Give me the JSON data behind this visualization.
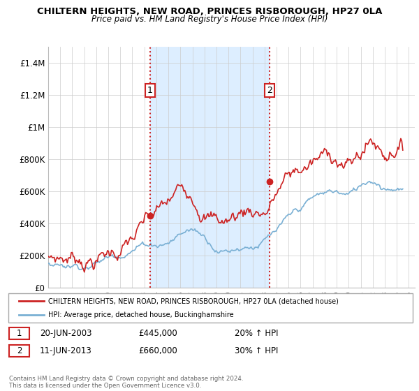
{
  "title": "CHILTERN HEIGHTS, NEW ROAD, PRINCES RISBOROUGH, HP27 0LA",
  "subtitle": "Price paid vs. HM Land Registry's House Price Index (HPI)",
  "legend_line1": "CHILTERN HEIGHTS, NEW ROAD, PRINCES RISBOROUGH, HP27 0LA (detached house)",
  "legend_line2": "HPI: Average price, detached house, Buckinghamshire",
  "annotation1_label": "1",
  "annotation1_date": "20-JUN-2003",
  "annotation1_price": "£445,000",
  "annotation1_hpi": "20% ↑ HPI",
  "annotation2_label": "2",
  "annotation2_date": "11-JUN-2013",
  "annotation2_price": "£660,000",
  "annotation2_hpi": "30% ↑ HPI",
  "copyright": "Contains HM Land Registry data © Crown copyright and database right 2024.\nThis data is licensed under the Open Government Licence v3.0.",
  "vline1_x": 2003.47,
  "vline2_x": 2013.44,
  "marker1_x": 2003.47,
  "marker1_y": 445000,
  "marker2_x": 2013.44,
  "marker2_y": 660000,
  "ylim": [
    0,
    1500000
  ],
  "xlim": [
    1995,
    2025.5
  ],
  "red_line_color": "#cc2222",
  "blue_line_color": "#7ab0d4",
  "shade_color": "#ddeeff",
  "vline_color": "#cc2222",
  "background_color": "#ffffff",
  "grid_color": "#cccccc",
  "yticks": [
    0,
    200000,
    400000,
    600000,
    800000,
    1000000,
    1200000,
    1400000
  ],
  "ytick_labels": [
    "£0",
    "£200K",
    "£400K",
    "£600K",
    "£800K",
    "£1M",
    "£1.2M",
    "£1.4M"
  ],
  "xticks": [
    1995,
    1996,
    1997,
    1998,
    1999,
    2000,
    2001,
    2002,
    2003,
    2004,
    2005,
    2006,
    2007,
    2008,
    2009,
    2010,
    2011,
    2012,
    2013,
    2014,
    2015,
    2016,
    2017,
    2018,
    2019,
    2020,
    2021,
    2022,
    2023,
    2024,
    2025
  ]
}
